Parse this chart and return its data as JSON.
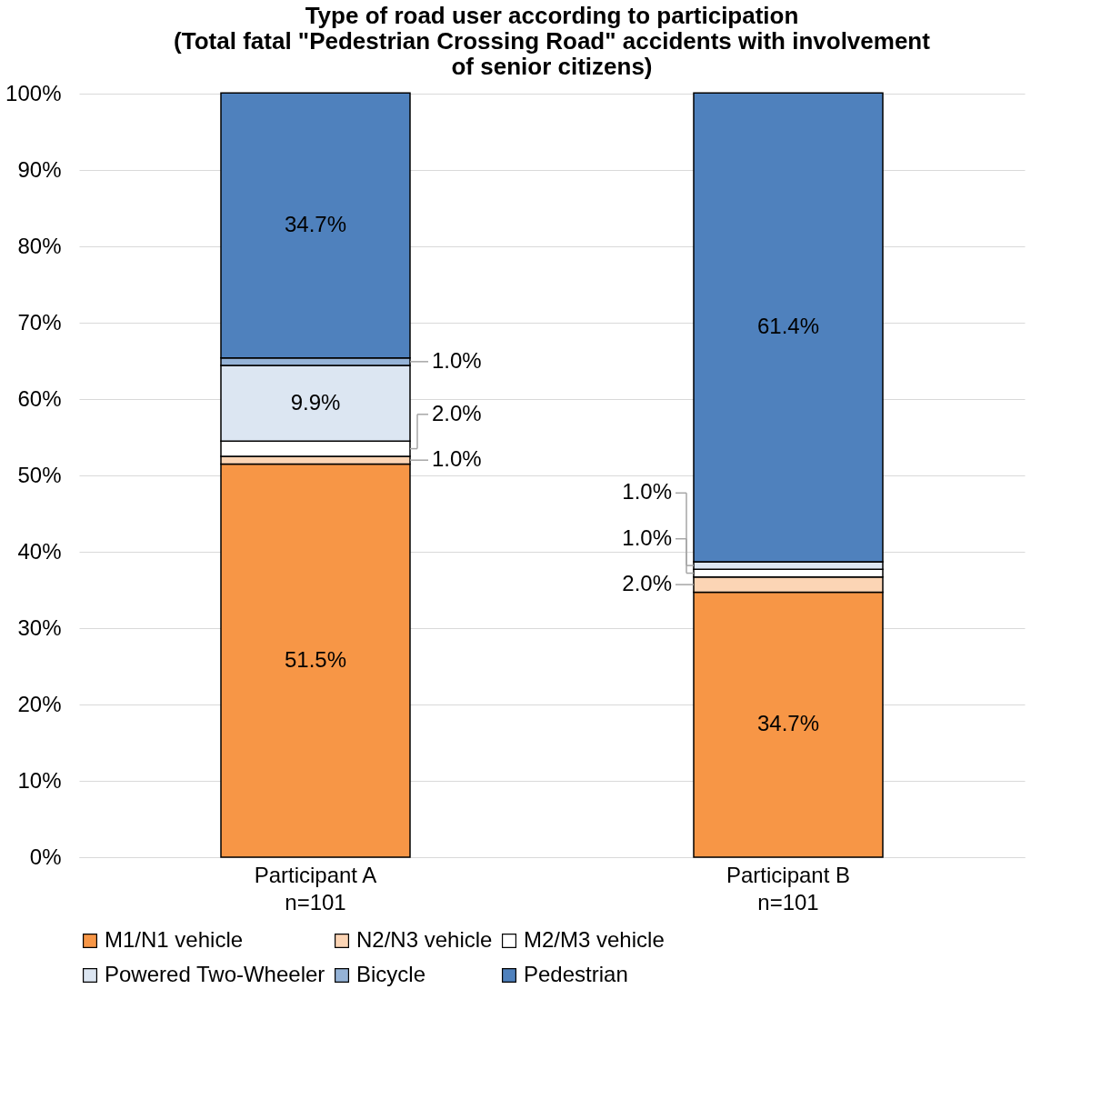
{
  "chart_data": {
    "type": "bar",
    "stacked": true,
    "title": "Type of road user according to participation\n(Total fatal \"Pedestrian Crossing Road\" accidents with involvement\nof senior citizens)",
    "categories": [
      "Participant A\nn=101",
      "Participant B\nn=101"
    ],
    "series": [
      {
        "name": "M1/N1 vehicle",
        "color": "#f79646",
        "values": [
          51.5,
          34.7
        ],
        "value_labels": [
          "51.5%",
          "34.7%"
        ]
      },
      {
        "name": "N2/N3 vehicle",
        "color": "#fcd5b5",
        "values": [
          1.0,
          2.0
        ],
        "value_labels": [
          "1.0%",
          "2.0%"
        ]
      },
      {
        "name": "M2/M3 vehicle",
        "color": "#ffffff",
        "values": [
          2.0,
          1.0
        ],
        "value_labels": [
          "2.0%",
          "1.0%"
        ]
      },
      {
        "name": "Powered Two-Wheeler",
        "color": "#dce6f2",
        "values": [
          9.9,
          1.0
        ],
        "value_labels": [
          "9.9%",
          "1.0%"
        ]
      },
      {
        "name": "Bicycle",
        "color": "#95b3d7",
        "values": [
          1.0,
          0
        ],
        "value_labels": [
          "1.0%",
          null
        ]
      },
      {
        "name": "Pedestrian",
        "color": "#4f81bd",
        "values": [
          34.7,
          61.4
        ],
        "value_labels": [
          "34.7%",
          "61.4%"
        ]
      }
    ],
    "ylim": [
      0,
      100
    ],
    "yticks": [
      {
        "value": 0,
        "label": "0%"
      },
      {
        "value": 10,
        "label": "10%"
      },
      {
        "value": 20,
        "label": "20%"
      },
      {
        "value": 30,
        "label": "30%"
      },
      {
        "value": 40,
        "label": "40%"
      },
      {
        "value": 50,
        "label": "50%"
      },
      {
        "value": 60,
        "label": "60%"
      },
      {
        "value": 70,
        "label": "70%"
      },
      {
        "value": 80,
        "label": "80%"
      },
      {
        "value": 90,
        "label": "90%"
      },
      {
        "value": 100,
        "label": "100%"
      }
    ],
    "grid": "y",
    "legend": "bottom"
  }
}
